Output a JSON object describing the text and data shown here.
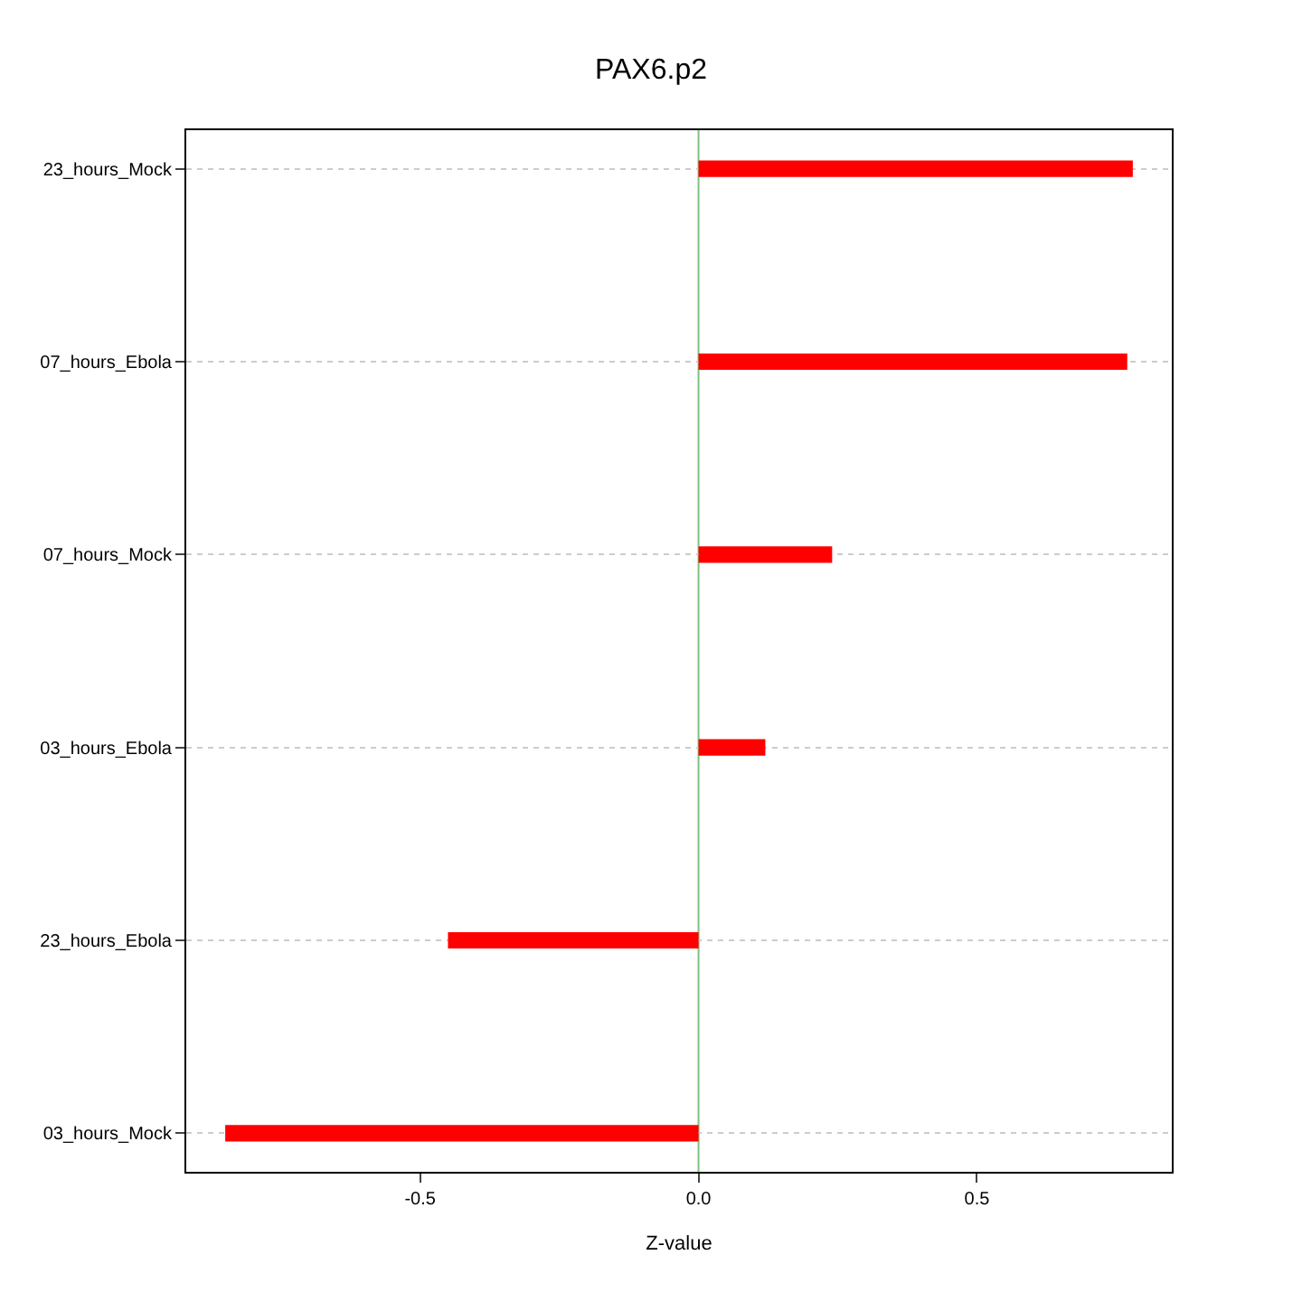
{
  "chart_data": {
    "type": "bar",
    "orientation": "horizontal",
    "title": "PAX6.p2",
    "xlabel": "Z-value",
    "categories": [
      "23_hours_Mock",
      "07_hours_Ebola",
      "07_hours_Mock",
      "03_hours_Ebola",
      "23_hours_Ebola",
      "03_hours_Mock"
    ],
    "values": [
      0.78,
      0.77,
      0.24,
      0.12,
      -0.45,
      -0.85
    ],
    "color": "#ff0000",
    "xlim": [
      -0.92,
      0.85
    ],
    "xticks": [
      -0.5,
      {
        "value": 0,
        "label": "0.0"
      },
      0.5
    ],
    "ref_lines": [
      {
        "axis": "x",
        "value": 0,
        "color": "#80c080"
      }
    ],
    "grid": "y",
    "legend": false
  }
}
